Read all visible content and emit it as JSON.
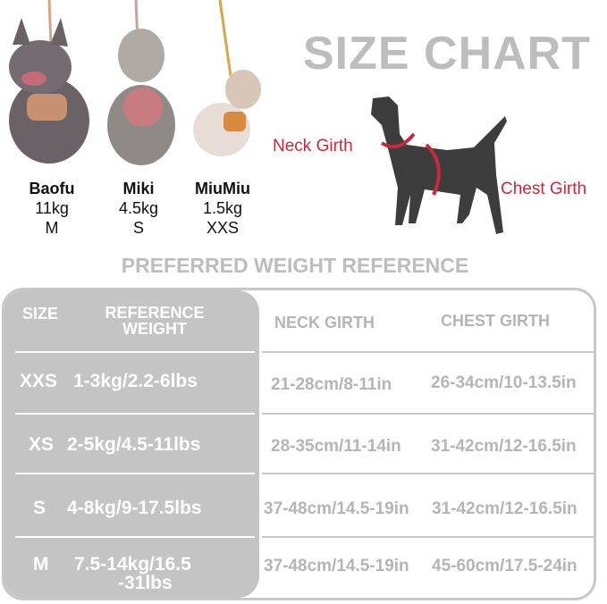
{
  "title": "SIZE CHART",
  "subtitle": "PREFERRED WEIGHT REFERENCE",
  "dogs": [
    {
      "name": "Baofu",
      "weight": "11kg",
      "size": "M"
    },
    {
      "name": "Miki",
      "weight": "4.5kg",
      "size": "S"
    },
    {
      "name": "MiuMiu",
      "weight": "1.5kg",
      "size": "XXS"
    }
  ],
  "diagram": {
    "neck_label": "Neck Girth",
    "chest_label": "Chest Girth",
    "accent": "#c9283d"
  },
  "table": {
    "headers": {
      "size": "SIZE",
      "weight_line1": "REFERENCE",
      "weight_line2": "WEIGHT",
      "neck": "NECK GIRTH",
      "chest": "CHEST GIRTH"
    },
    "rows": [
      {
        "size": "XXS",
        "weight": "1-3kg/2.2-6lbs",
        "neck": "21-28cm/8-11in",
        "chest": "26-34cm/10-13.5in"
      },
      {
        "size": "XS",
        "weight": "2-5kg/4.5-11lbs",
        "neck": "28-35cm/11-14in",
        "chest": "31-42cm/12-16.5in"
      },
      {
        "size": "S",
        "weight": "4-8kg/9-17.5lbs",
        "neck": "37-48cm/14.5-19in",
        "chest": "31-42cm/12-16.5in"
      },
      {
        "size": "M",
        "weight": "7.5-14kg/16.5",
        "weight2": "-31lbs",
        "neck": "37-48cm/14.5-19in",
        "chest": "45-60cm/17.5-24in"
      }
    ]
  }
}
